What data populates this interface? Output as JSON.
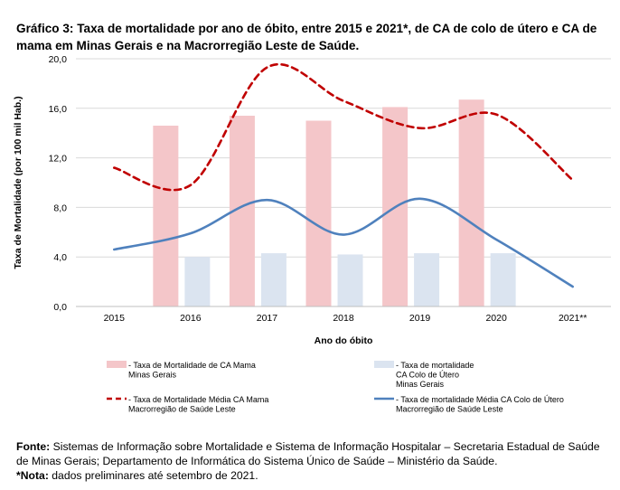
{
  "title": "Gráfico 3: Taxa de mortalidade por ano de óbito, entre 2015 e 2021*, de CA de colo de útero e CA de mama em Minas Gerais e na Macrorregião Leste de Saúde.",
  "chart_data": {
    "type": "bar+line",
    "categories": [
      "2015",
      "2016",
      "2017",
      "2018",
      "2019",
      "2020",
      "2021**"
    ],
    "xlabel": "Ano do óbito",
    "ylabel": "Taxa de Mortalidade (por 100 mil Hab.)",
    "ylim": [
      0,
      20
    ],
    "yticks": [
      0,
      4,
      8,
      12,
      16,
      20
    ],
    "ytick_labels": [
      "0,0",
      "4,0",
      "8,0",
      "12,0",
      "16,0",
      "20,0"
    ],
    "series": [
      {
        "name": "- Taxa de Mortalidade de CA Mama Minas Gerais",
        "legend_lines": [
          "- Taxa de Mortalidade de CA Mama",
          "Minas Gerais"
        ],
        "kind": "bar",
        "color": "#f4c6c9",
        "values": [
          null,
          14.6,
          15.4,
          15.0,
          16.1,
          16.7,
          null
        ]
      },
      {
        "name": "- Taxa de mortalidade CA Colo de Útero Minas Gerais",
        "legend_lines": [
          "- Taxa de mortalidade",
          "CA Colo de Útero",
          "Minas Gerais"
        ],
        "kind": "bar",
        "color": "#dbe4f0",
        "values": [
          null,
          4.0,
          4.3,
          4.2,
          4.3,
          4.3,
          null
        ]
      },
      {
        "name": "- Taxa de Mortalidade Média CA Mama Macrorregião de Saúde Leste",
        "legend_lines": [
          "- Taxa de Mortalidade Média CA Mama",
          "Macrorregião de Saúde Leste"
        ],
        "kind": "line",
        "style": "dashed",
        "color": "#c00000",
        "values": [
          11.2,
          9.8,
          19.3,
          16.6,
          14.4,
          15.5,
          10.2
        ]
      },
      {
        "name": "- Taxa de mortalidade Média CA Colo de Útero Macrorregião de Saúde Leste",
        "legend_lines": [
          "- Taxa de mortalidade Média CA Colo de Útero",
          "Macrorregião de Saúde Leste"
        ],
        "kind": "line",
        "style": "solid",
        "color": "#4f81bd",
        "values": [
          4.6,
          5.9,
          8.6,
          5.8,
          8.7,
          5.4,
          1.6
        ]
      }
    ]
  },
  "source": {
    "fonte_label": "Fonte:",
    "fonte_text": " Sistemas de Informação sobre Mortalidade e Sistema de Informação Hospitalar – Secretaria Estadual de Saúde de Minas Gerais; Departamento de Informática do Sistema Único de Saúde – Ministério da Saúde.",
    "nota_label": "*Nota:",
    "nota_text": " dados preliminares até setembro de 2021."
  }
}
